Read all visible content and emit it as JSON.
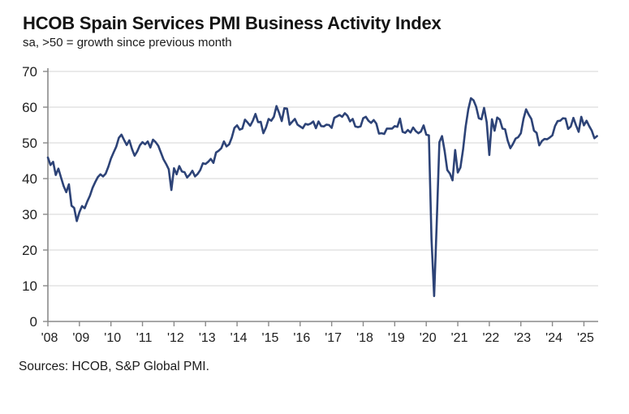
{
  "header": {
    "title": "HCOB Spain Services PMI Business Activity Index",
    "subtitle": "sa, >50 = growth since previous month",
    "source": "Sources: HCOB, S&P Global PMI."
  },
  "chart_data": {
    "type": "line",
    "title": "HCOB Spain Services PMI Business Activity Index",
    "subtitle": "sa, >50 = growth since previous month",
    "source": "Sources: HCOB, S&P Global PMI.",
    "xlabel": "",
    "ylabel": "",
    "ylim": [
      0,
      70
    ],
    "y_ticks": [
      0,
      10,
      20,
      30,
      40,
      50,
      60,
      70
    ],
    "x_tick_labels": [
      "'08",
      "'09",
      "'10",
      "'11",
      "'12",
      "'13",
      "'14",
      "'15",
      "'16",
      "'17",
      "'18",
      "'19",
      "'20",
      "'21",
      "'22",
      "'23",
      "'24",
      "'25"
    ],
    "grid": "horizontal",
    "legend": "none",
    "line_color": "#2d4377",
    "grid_color": "#d4d4d4",
    "axis_color": "#8a8a8a",
    "series": [
      {
        "name": "Spain Services PMI Business Activity Index",
        "start": "2008-01",
        "frequency": "monthly",
        "values": [
          45.9,
          43.8,
          44.7,
          41.0,
          42.8,
          40.3,
          37.9,
          36.2,
          38.4,
          32.4,
          31.8,
          28.1,
          30.6,
          32.3,
          31.7,
          33.6,
          35.2,
          37.4,
          39.0,
          40.4,
          41.2,
          40.6,
          41.4,
          43.3,
          45.6,
          47.3,
          48.9,
          51.4,
          52.3,
          50.8,
          49.4,
          50.7,
          48.3,
          46.4,
          47.6,
          49.3,
          50.2,
          49.6,
          50.4,
          48.7,
          50.9,
          50.2,
          49.2,
          47.3,
          45.4,
          44.1,
          42.6,
          36.8,
          42.9,
          41.2,
          43.5,
          42.0,
          41.8,
          40.3,
          41.1,
          42.2,
          40.6,
          41.3,
          42.4,
          44.3,
          44.1,
          44.7,
          45.5,
          44.4,
          47.3,
          47.8,
          48.5,
          50.4,
          49.0,
          49.6,
          51.5,
          54.2,
          54.9,
          53.7,
          54.0,
          56.5,
          55.7,
          54.8,
          56.2,
          58.1,
          55.8,
          55.9,
          52.7,
          54.3,
          56.7,
          56.2,
          57.3,
          60.3,
          58.4,
          56.1,
          59.7,
          59.6,
          55.1,
          55.9,
          56.7,
          55.1,
          54.6,
          54.1,
          55.3,
          55.1,
          55.4,
          56.0,
          54.1,
          56.0,
          54.7,
          54.6,
          55.1,
          55.0,
          54.2,
          57.0,
          57.4,
          57.8,
          57.3,
          58.3,
          57.6,
          56.0,
          56.7,
          54.6,
          54.4,
          54.6,
          56.9,
          57.3,
          56.2,
          55.6,
          56.4,
          55.4,
          52.6,
          52.7,
          52.5,
          54.0,
          54.0,
          54.0,
          54.7,
          54.5,
          56.8,
          53.1,
          52.8,
          53.6,
          52.9,
          54.3,
          53.3,
          52.7,
          53.2,
          54.9,
          52.3,
          52.1,
          23.0,
          7.1,
          27.9,
          50.2,
          51.9,
          47.7,
          42.4,
          41.4,
          39.5,
          48.0,
          41.7,
          43.1,
          48.1,
          54.6,
          59.4,
          62.5,
          61.9,
          60.1,
          56.9,
          56.6,
          59.8,
          55.8,
          46.6,
          56.6,
          53.4,
          57.1,
          56.5,
          54.0,
          53.8,
          50.6,
          48.5,
          49.7,
          51.2,
          51.6,
          52.7,
          56.7,
          59.4,
          57.9,
          56.7,
          53.4,
          52.8,
          49.3,
          50.5,
          51.1,
          51.0,
          51.5,
          52.1,
          54.7,
          56.1,
          56.2,
          56.9,
          56.8,
          53.9,
          54.6,
          57.0,
          54.9,
          53.1,
          57.3,
          54.9,
          56.2,
          54.7,
          53.4,
          51.3,
          51.9
        ]
      }
    ]
  }
}
